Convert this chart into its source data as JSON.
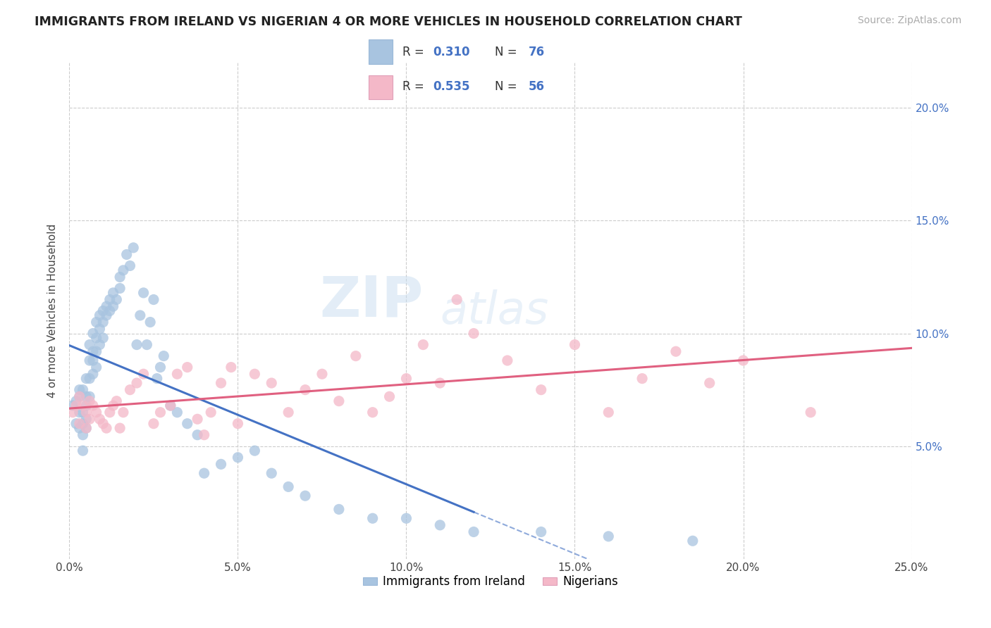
{
  "title": "IMMIGRANTS FROM IRELAND VS NIGERIAN 4 OR MORE VEHICLES IN HOUSEHOLD CORRELATION CHART",
  "source": "Source: ZipAtlas.com",
  "ylabel": "4 or more Vehicles in Household",
  "xlim": [
    0.0,
    0.25
  ],
  "ylim": [
    0.0,
    0.22
  ],
  "xticks": [
    0.0,
    0.05,
    0.1,
    0.15,
    0.2,
    0.25
  ],
  "yticks_right": [
    0.05,
    0.1,
    0.15,
    0.2
  ],
  "ireland_color": "#a8c4e0",
  "nigeria_color": "#f4b8c8",
  "ireland_line_color": "#4472c4",
  "nigeria_line_color": "#e06080",
  "ireland_R": 0.31,
  "ireland_N": 76,
  "nigeria_R": 0.535,
  "nigeria_N": 56,
  "legend_label_ireland": "Immigrants from Ireland",
  "legend_label_nigeria": "Nigerians",
  "watermark_zip": "ZIP",
  "watermark_atlas": "atlas",
  "ireland_x": [
    0.001,
    0.002,
    0.002,
    0.003,
    0.003,
    0.003,
    0.003,
    0.004,
    0.004,
    0.004,
    0.004,
    0.004,
    0.005,
    0.005,
    0.005,
    0.005,
    0.005,
    0.006,
    0.006,
    0.006,
    0.006,
    0.007,
    0.007,
    0.007,
    0.007,
    0.008,
    0.008,
    0.008,
    0.008,
    0.009,
    0.009,
    0.009,
    0.01,
    0.01,
    0.01,
    0.011,
    0.011,
    0.012,
    0.012,
    0.013,
    0.013,
    0.014,
    0.015,
    0.015,
    0.016,
    0.017,
    0.018,
    0.019,
    0.02,
    0.021,
    0.022,
    0.023,
    0.024,
    0.025,
    0.026,
    0.027,
    0.028,
    0.03,
    0.032,
    0.035,
    0.038,
    0.04,
    0.045,
    0.05,
    0.055,
    0.06,
    0.065,
    0.07,
    0.08,
    0.09,
    0.1,
    0.11,
    0.12,
    0.14,
    0.16,
    0.185
  ],
  "ireland_y": [
    0.068,
    0.07,
    0.06,
    0.075,
    0.072,
    0.065,
    0.058,
    0.075,
    0.065,
    0.06,
    0.055,
    0.048,
    0.08,
    0.072,
    0.068,
    0.062,
    0.058,
    0.095,
    0.088,
    0.08,
    0.072,
    0.1,
    0.092,
    0.088,
    0.082,
    0.105,
    0.098,
    0.092,
    0.085,
    0.108,
    0.102,
    0.095,
    0.11,
    0.105,
    0.098,
    0.112,
    0.108,
    0.115,
    0.11,
    0.118,
    0.112,
    0.115,
    0.125,
    0.12,
    0.128,
    0.135,
    0.13,
    0.138,
    0.095,
    0.108,
    0.118,
    0.095,
    0.105,
    0.115,
    0.08,
    0.085,
    0.09,
    0.068,
    0.065,
    0.06,
    0.055,
    0.038,
    0.042,
    0.045,
    0.048,
    0.038,
    0.032,
    0.028,
    0.022,
    0.018,
    0.018,
    0.015,
    0.012,
    0.012,
    0.01,
    0.008
  ],
  "nigeria_x": [
    0.001,
    0.002,
    0.003,
    0.003,
    0.004,
    0.005,
    0.005,
    0.006,
    0.006,
    0.007,
    0.008,
    0.009,
    0.01,
    0.011,
    0.012,
    0.013,
    0.014,
    0.015,
    0.016,
    0.018,
    0.02,
    0.022,
    0.025,
    0.027,
    0.03,
    0.032,
    0.035,
    0.038,
    0.04,
    0.042,
    0.045,
    0.048,
    0.05,
    0.055,
    0.06,
    0.065,
    0.07,
    0.075,
    0.08,
    0.085,
    0.09,
    0.095,
    0.1,
    0.105,
    0.11,
    0.115,
    0.12,
    0.13,
    0.14,
    0.15,
    0.16,
    0.17,
    0.18,
    0.19,
    0.2,
    0.22
  ],
  "nigeria_y": [
    0.065,
    0.068,
    0.06,
    0.072,
    0.068,
    0.058,
    0.065,
    0.062,
    0.07,
    0.068,
    0.065,
    0.062,
    0.06,
    0.058,
    0.065,
    0.068,
    0.07,
    0.058,
    0.065,
    0.075,
    0.078,
    0.082,
    0.06,
    0.065,
    0.068,
    0.082,
    0.085,
    0.062,
    0.055,
    0.065,
    0.078,
    0.085,
    0.06,
    0.082,
    0.078,
    0.065,
    0.075,
    0.082,
    0.07,
    0.09,
    0.065,
    0.072,
    0.08,
    0.095,
    0.078,
    0.115,
    0.1,
    0.088,
    0.075,
    0.095,
    0.065,
    0.08,
    0.092,
    0.078,
    0.088,
    0.065
  ]
}
